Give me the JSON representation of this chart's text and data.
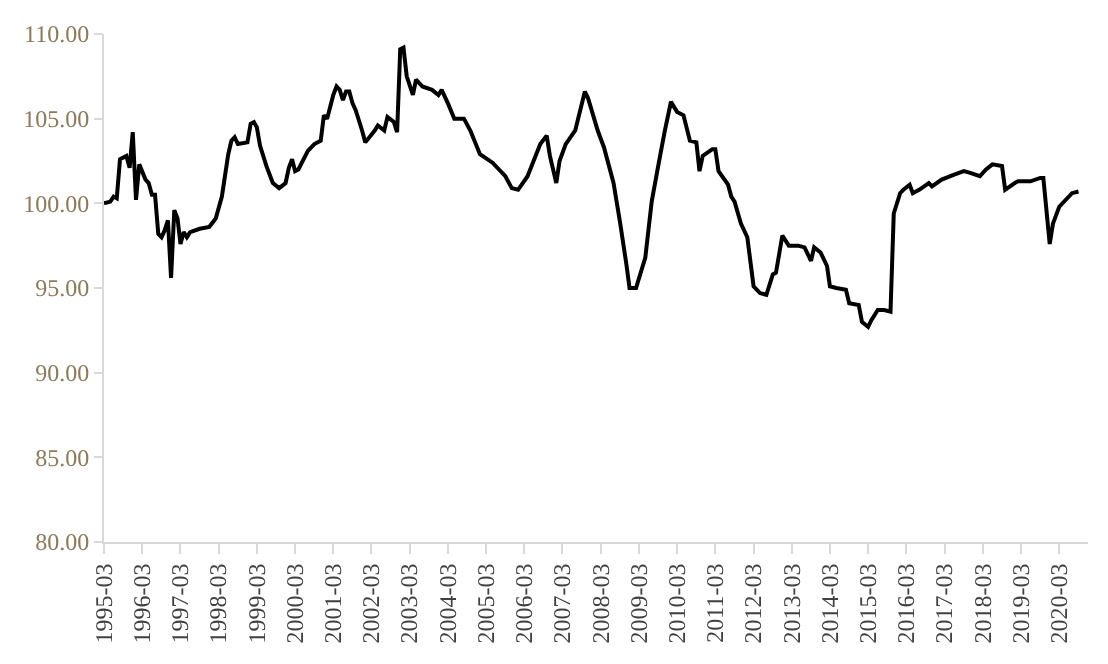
{
  "chart_data": {
    "type": "line",
    "x": [
      "1995-03",
      "1995-05",
      "1995-06",
      "1995-07",
      "1995-08",
      "1995-10",
      "1995-11",
      "1995-12",
      "1996-01",
      "1996-02",
      "1996-04",
      "1996-05",
      "1996-06",
      "1996-07",
      "1996-08",
      "1996-09",
      "1996-10",
      "1996-11",
      "1996-12",
      "1997-01",
      "1997-02",
      "1997-03",
      "1997-04",
      "1997-05",
      "1997-06",
      "1997-09",
      "1997-12",
      "1998-02",
      "1998-04",
      "1998-06",
      "1998-07",
      "1998-08",
      "1998-09",
      "1998-12",
      "1999-01",
      "1999-02",
      "1999-03",
      "1999-04",
      "1999-06",
      "1999-08",
      "1999-10",
      "1999-12",
      "2000-01",
      "2000-02",
      "2000-03",
      "2000-04",
      "2000-07",
      "2000-09",
      "2000-11",
      "2000-12",
      "2001-01",
      "2001-03",
      "2001-04",
      "2001-05",
      "2001-06",
      "2001-07",
      "2001-08",
      "2001-09",
      "2001-10",
      "2001-12",
      "2002-01",
      "2002-04",
      "2002-05",
      "2002-07",
      "2002-08",
      "2002-10",
      "2002-11",
      "2002-12",
      "2003-01",
      "2003-02",
      "2003-04",
      "2003-05",
      "2003-07",
      "2003-10",
      "2003-12",
      "2004-01",
      "2004-03",
      "2004-05",
      "2004-08",
      "2004-10",
      "2005-01",
      "2005-05",
      "2005-09",
      "2005-11",
      "2006-01",
      "2006-04",
      "2006-08",
      "2006-10",
      "2006-11",
      "2007-01",
      "2007-02",
      "2007-04",
      "2007-07",
      "2007-10",
      "2007-11",
      "2008-02",
      "2008-04",
      "2008-07",
      "2008-09",
      "2008-11",
      "2008-12",
      "2009-02",
      "2009-05",
      "2009-07",
      "2009-09",
      "2009-11",
      "2010-01",
      "2010-03",
      "2010-05",
      "2010-07",
      "2010-09",
      "2010-10",
      "2010-11",
      "2011-02",
      "2011-03",
      "2011-04",
      "2011-07",
      "2011-08",
      "2011-09",
      "2011-11",
      "2012-01",
      "2012-03",
      "2012-05",
      "2012-07",
      "2012-09",
      "2012-10",
      "2012-12",
      "2013-02",
      "2013-05",
      "2013-07",
      "2013-09",
      "2013-10",
      "2013-12",
      "2014-02",
      "2014-03",
      "2014-05",
      "2014-08",
      "2014-09",
      "2014-12",
      "2015-01",
      "2015-03",
      "2015-04",
      "2015-06",
      "2015-08",
      "2015-10",
      "2015-11",
      "2016-01",
      "2016-02",
      "2016-04",
      "2016-05",
      "2016-07",
      "2016-10",
      "2016-11",
      "2017-02",
      "2017-06",
      "2017-09",
      "2017-11",
      "2018-02",
      "2018-04",
      "2018-06",
      "2018-09",
      "2018-10",
      "2019-01",
      "2019-02",
      "2019-06",
      "2019-09",
      "2019-10",
      "2019-12",
      "2020-01",
      "2020-03",
      "2020-07",
      "2020-09"
    ],
    "series": [
      {
        "color": "#000000",
        "values": [
          100.0,
          100.1,
          100.4,
          100.3,
          102.6,
          102.8,
          102.1,
          104.2,
          100.2,
          102.3,
          101.4,
          101.2,
          100.5,
          100.5,
          98.2,
          98.0,
          98.4,
          99.0,
          95.6,
          99.6,
          99.1,
          97.6,
          98.3,
          98.0,
          98.3,
          98.5,
          98.6,
          99.1,
          100.4,
          102.9,
          103.7,
          103.9,
          103.5,
          103.6,
          104.7,
          104.8,
          104.5,
          103.4,
          102.2,
          101.2,
          100.9,
          101.2,
          102.1,
          102.6,
          101.9,
          102.0,
          103.1,
          103.5,
          103.7,
          105.2,
          105.0,
          106.4,
          106.9,
          106.7,
          106.1,
          106.6,
          106.6,
          105.9,
          105.5,
          104.3,
          103.6,
          104.3,
          104.6,
          104.3,
          105.1,
          104.8,
          104.2,
          109.1,
          109.2,
          107.5,
          106.4,
          107.3,
          106.9,
          106.7,
          106.4,
          106.7,
          105.9,
          105.0,
          105.0,
          104.3,
          102.9,
          102.4,
          101.6,
          100.9,
          100.8,
          101.6,
          103.5,
          104.0,
          102.8,
          101.2,
          102.5,
          103.5,
          104.3,
          106.6,
          106.2,
          104.3,
          103.3,
          101.2,
          98.9,
          96.4,
          95.0,
          95.0,
          96.8,
          100.1,
          102.2,
          104.2,
          106.0,
          105.4,
          105.2,
          103.7,
          103.6,
          101.9,
          102.8,
          103.2,
          103.2,
          101.9,
          101.1,
          100.4,
          100.1,
          98.8,
          98.0,
          95.1,
          94.7,
          94.6,
          95.8,
          95.9,
          98.1,
          97.5,
          97.5,
          97.4,
          96.6,
          97.4,
          97.1,
          96.3,
          95.1,
          95.0,
          94.9,
          94.1,
          94.0,
          93.0,
          92.7,
          93.1,
          93.7,
          93.7,
          93.6,
          99.4,
          100.6,
          100.8,
          101.1,
          100.6,
          100.8,
          101.2,
          101.0,
          101.4,
          101.7,
          101.9,
          101.8,
          101.6,
          102.0,
          102.3,
          102.2,
          100.8,
          101.2,
          101.3,
          101.3,
          101.5,
          101.5,
          97.6,
          98.8,
          99.8,
          100.6,
          100.7
        ]
      }
    ],
    "xlim": [
      "1995-03",
      "2020-12"
    ],
    "xticks": [
      {
        "value": "1995-03",
        "label": "1995-03"
      },
      {
        "value": "1996-03",
        "label": "1996-03"
      },
      {
        "value": "1997-03",
        "label": "1997-03"
      },
      {
        "value": "1998-03",
        "label": "1998-03"
      },
      {
        "value": "1999-03",
        "label": "1999-03"
      },
      {
        "value": "2000-03",
        "label": "2000-03"
      },
      {
        "value": "2001-03",
        "label": "2001-03"
      },
      {
        "value": "2002-03",
        "label": "2002-03"
      },
      {
        "value": "2003-03",
        "label": "2003-03"
      },
      {
        "value": "2004-03",
        "label": "2004-03"
      },
      {
        "value": "2005-03",
        "label": "2005-03"
      },
      {
        "value": "2006-03",
        "label": "2006-03"
      },
      {
        "value": "2007-03",
        "label": "2007-03"
      },
      {
        "value": "2008-03",
        "label": "2008-03"
      },
      {
        "value": "2009-03",
        "label": "2009-03"
      },
      {
        "value": "2010-03",
        "label": "2010-03"
      },
      {
        "value": "2011-03",
        "label": "2011-03"
      },
      {
        "value": "2012-03",
        "label": "2012-03"
      },
      {
        "value": "2013-03",
        "label": "2013-03"
      },
      {
        "value": "2014-03",
        "label": "2014-03"
      },
      {
        "value": "2015-03",
        "label": "2015-03"
      },
      {
        "value": "2016-03",
        "label": "2016-03"
      },
      {
        "value": "2017-03",
        "label": "2017-03"
      },
      {
        "value": "2018-03",
        "label": "2018-03"
      },
      {
        "value": "2019-03",
        "label": "2019-03"
      },
      {
        "value": "2020-03",
        "label": "2020-03"
      }
    ],
    "ylim": [
      80,
      110
    ],
    "yticks": [
      {
        "value": 80,
        "label": "80.00"
      },
      {
        "value": 85,
        "label": "85.00"
      },
      {
        "value": 90,
        "label": "90.00"
      },
      {
        "value": 95,
        "label": "95.00"
      },
      {
        "value": 100,
        "label": "100.00"
      },
      {
        "value": 105,
        "label": "105.00"
      },
      {
        "value": 110,
        "label": "110.00"
      }
    ],
    "grid": false,
    "marker": "none",
    "line_style": "solid"
  }
}
